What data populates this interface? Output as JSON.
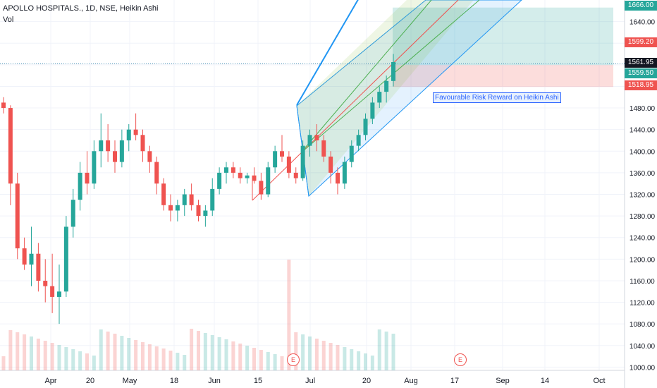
{
  "header": {
    "symbol": "APOLLO HOSPITALS., 1D, NSE, Heikin Ashi",
    "volume_label": "Vol"
  },
  "annotation": {
    "text": "Favourable Risk Reward on Heikin Ashi"
  },
  "price_tags": [
    {
      "value": "1666.00",
      "color": "#26a69a"
    },
    {
      "value": "1599.20",
      "color": "#ef5350"
    },
    {
      "value": "1561.95",
      "color": "#131722"
    },
    {
      "value": "1559.50",
      "color": "#26a69a"
    },
    {
      "value": "1518.95",
      "color": "#ef5350"
    }
  ],
  "earnings_marker": "E",
  "colors": {
    "up": "#26a69a",
    "down": "#ef5350",
    "channel": "#2196f3",
    "mid": "#4caf50",
    "target": "#26a69a",
    "stop": "#ef5350"
  },
  "chart_data": {
    "type": "candlestick",
    "y_axis_ticks": [
      "1000.00",
      "1040.00",
      "1080.00",
      "1120.00",
      "1160.00",
      "1200.00",
      "1240.00",
      "1280.00",
      "1320.00",
      "1360.00",
      "1400.00",
      "1440.00",
      "1480.00",
      "1520.00",
      "1560.00",
      "1600.00",
      "1640.00"
    ],
    "x_axis_ticks": [
      "Apr",
      "20",
      "May",
      "18",
      "Jun",
      "15",
      "Jul",
      "20",
      "Aug",
      "17",
      "Sep",
      "14",
      "Oct"
    ],
    "ylim": [
      994,
      1680
    ],
    "candles": [
      [
        1490,
        1500,
        1470,
        1480
      ],
      [
        1480,
        1485,
        1300,
        1340
      ],
      [
        1340,
        1360,
        1200,
        1220
      ],
      [
        1220,
        1240,
        1180,
        1190
      ],
      [
        1190,
        1260,
        1150,
        1210
      ],
      [
        1210,
        1230,
        1140,
        1160
      ],
      [
        1160,
        1200,
        1120,
        1150
      ],
      [
        1150,
        1210,
        1100,
        1130
      ],
      [
        1130,
        1190,
        1080,
        1140
      ],
      [
        1140,
        1280,
        1130,
        1260
      ],
      [
        1260,
        1330,
        1240,
        1310
      ],
      [
        1310,
        1380,
        1290,
        1360
      ],
      [
        1360,
        1400,
        1320,
        1340
      ],
      [
        1340,
        1420,
        1330,
        1400
      ],
      [
        1400,
        1470,
        1370,
        1420
      ],
      [
        1420,
        1450,
        1380,
        1400
      ],
      [
        1400,
        1420,
        1360,
        1380
      ],
      [
        1380,
        1440,
        1370,
        1420
      ],
      [
        1420,
        1450,
        1400,
        1440
      ],
      [
        1440,
        1470,
        1420,
        1430
      ],
      [
        1430,
        1440,
        1380,
        1400
      ],
      [
        1400,
        1410,
        1360,
        1380
      ],
      [
        1380,
        1390,
        1320,
        1340
      ],
      [
        1340,
        1350,
        1290,
        1300
      ],
      [
        1300,
        1320,
        1270,
        1290
      ],
      [
        1290,
        1310,
        1270,
        1300
      ],
      [
        1300,
        1330,
        1280,
        1320
      ],
      [
        1320,
        1340,
        1290,
        1300
      ],
      [
        1300,
        1310,
        1270,
        1280
      ],
      [
        1280,
        1300,
        1260,
        1290
      ],
      [
        1290,
        1350,
        1280,
        1330
      ],
      [
        1330,
        1370,
        1320,
        1360
      ],
      [
        1360,
        1380,
        1340,
        1370
      ],
      [
        1370,
        1380,
        1350,
        1360
      ],
      [
        1360,
        1370,
        1340,
        1350
      ],
      [
        1350,
        1360,
        1340,
        1355
      ],
      [
        1355,
        1370,
        1340,
        1345
      ],
      [
        1345,
        1360,
        1310,
        1320
      ],
      [
        1320,
        1380,
        1315,
        1370
      ],
      [
        1370,
        1410,
        1360,
        1400
      ],
      [
        1400,
        1430,
        1380,
        1390
      ],
      [
        1390,
        1400,
        1350,
        1360
      ],
      [
        1360,
        1370,
        1340,
        1350
      ],
      [
        1350,
        1420,
        1345,
        1410
      ],
      [
        1410,
        1440,
        1390,
        1430
      ],
      [
        1430,
        1450,
        1400,
        1420
      ],
      [
        1420,
        1430,
        1380,
        1390
      ],
      [
        1390,
        1400,
        1340,
        1360
      ],
      [
        1360,
        1370,
        1320,
        1340
      ],
      [
        1340,
        1390,
        1330,
        1380
      ],
      [
        1380,
        1420,
        1370,
        1410
      ],
      [
        1410,
        1440,
        1400,
        1430
      ],
      [
        1430,
        1470,
        1420,
        1460
      ],
      [
        1460,
        1500,
        1450,
        1490
      ],
      [
        1490,
        1520,
        1480,
        1510
      ],
      [
        1510,
        1540,
        1490,
        1530
      ],
      [
        1530,
        1580,
        1520,
        1565
      ]
    ],
    "long_position": {
      "entry": 1559.5,
      "target": 1666.0,
      "stop": 1518.95
    },
    "current_price": 1561.95
  }
}
